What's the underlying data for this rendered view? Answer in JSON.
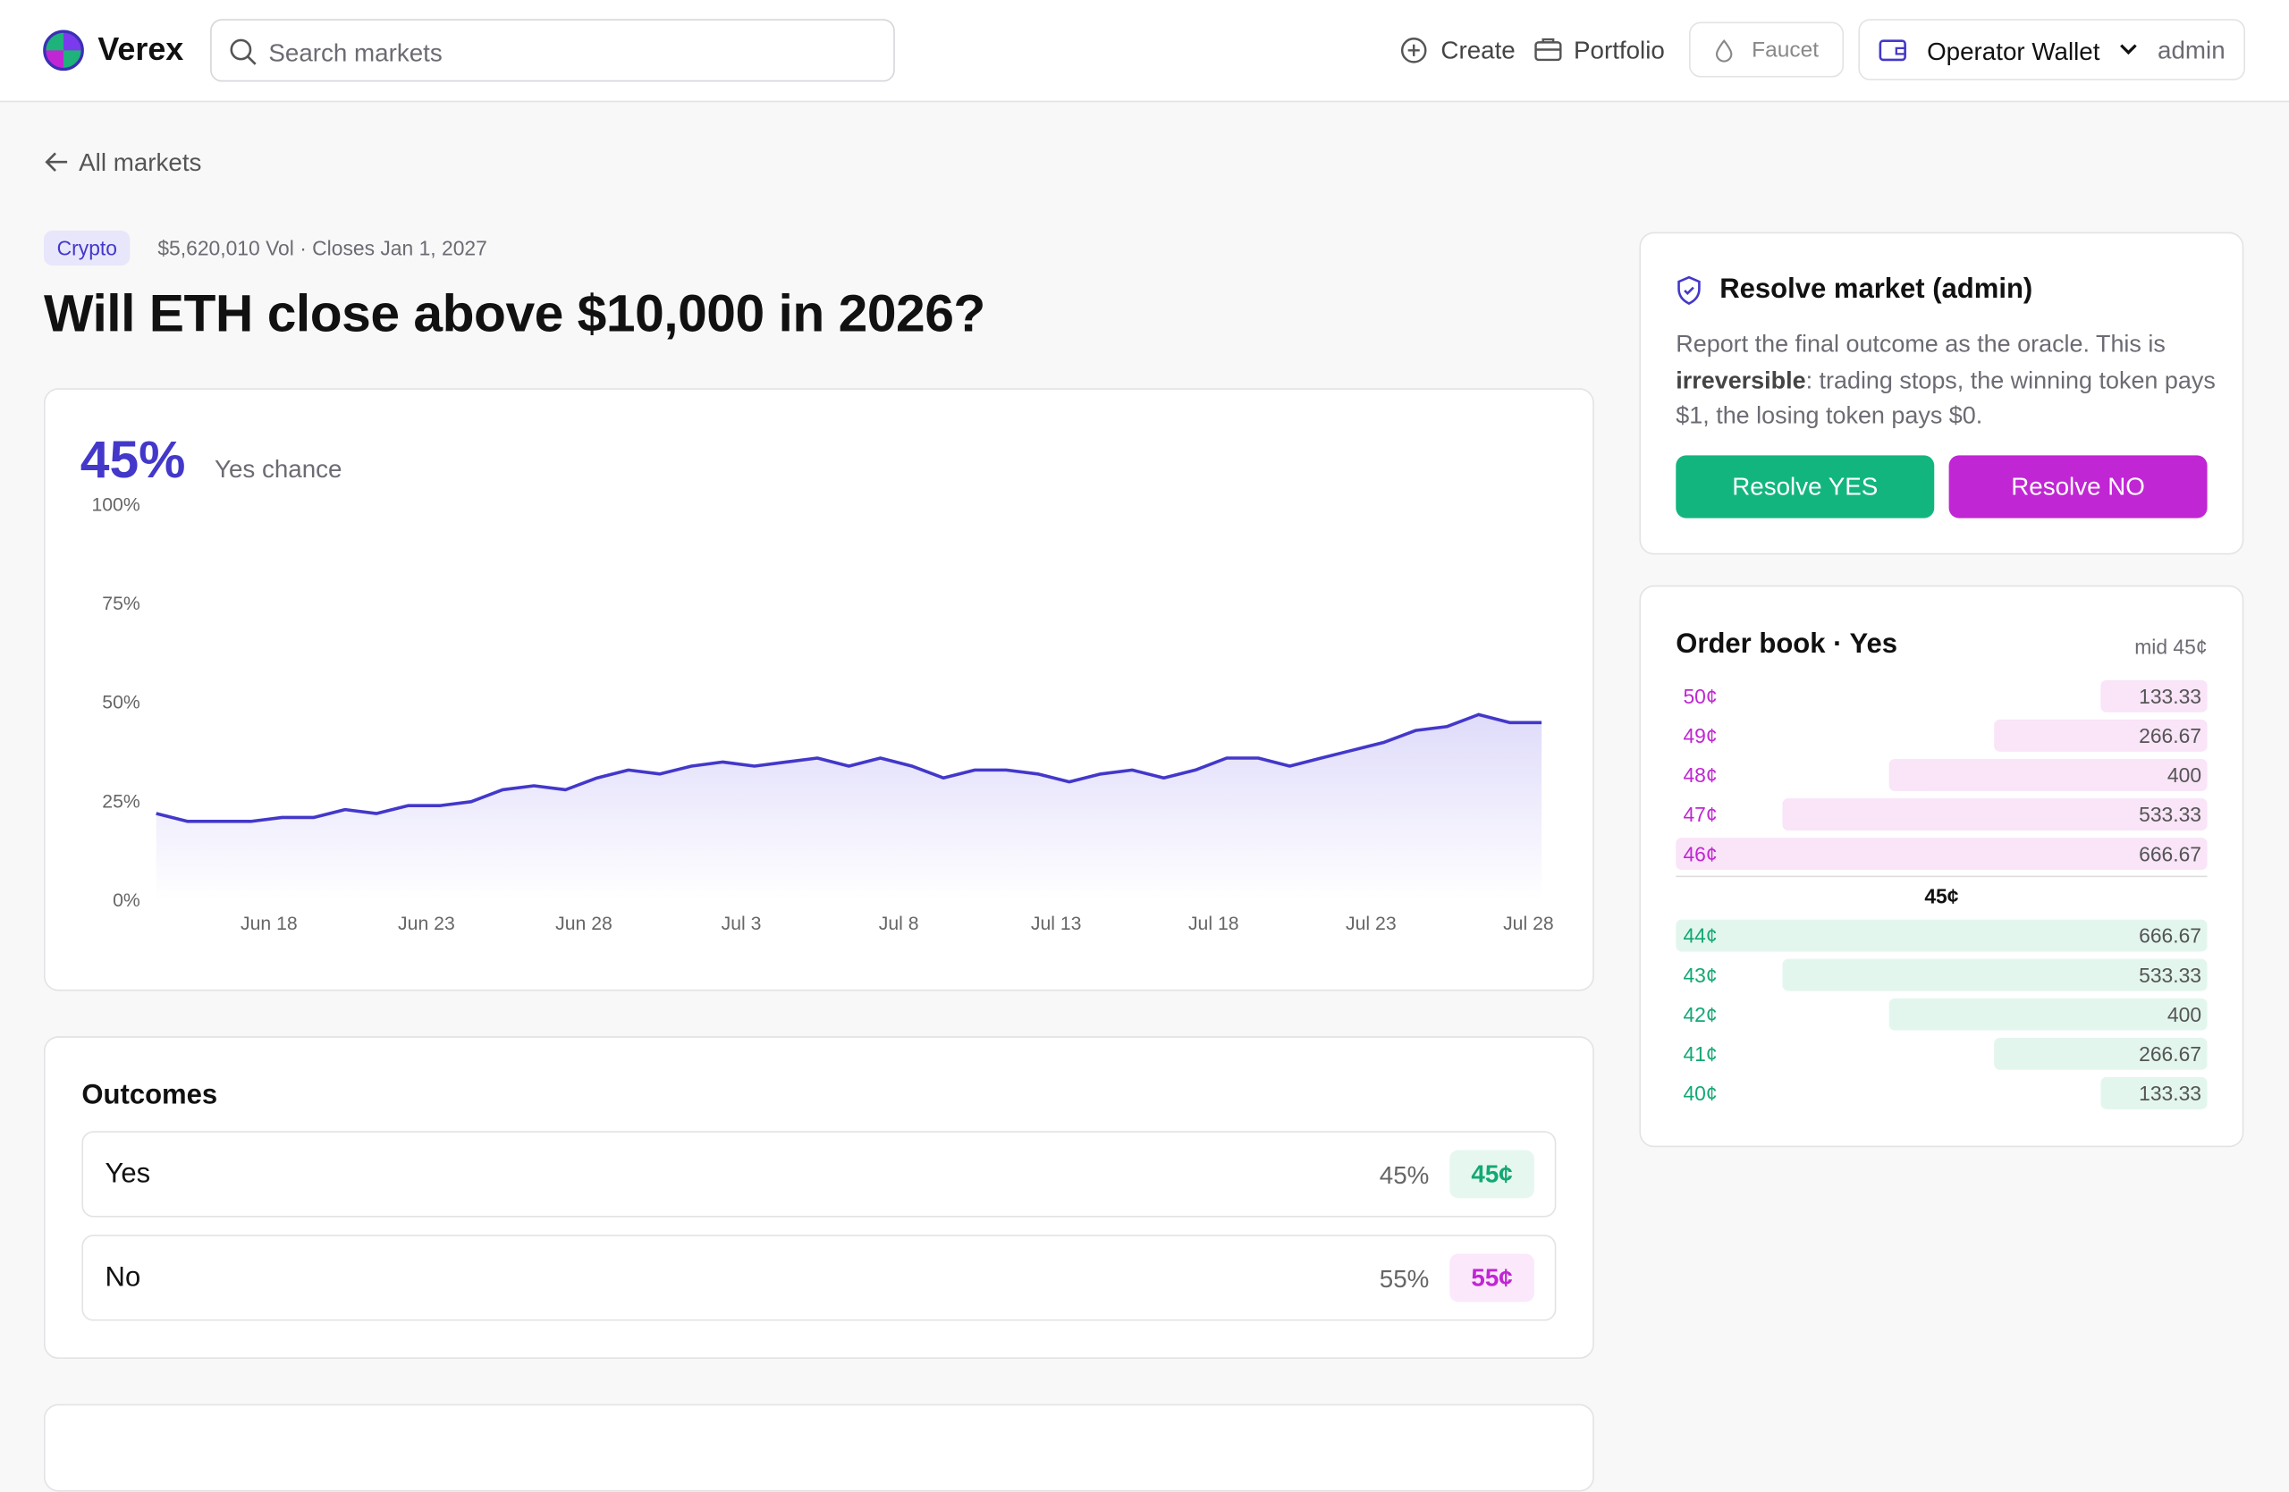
{
  "header": {
    "brand": "Verex",
    "search_placeholder": "Search markets",
    "nav": [
      "Create",
      "Portfolio",
      "Faucet"
    ],
    "wallet": "Operator Wallet",
    "user": "admin"
  },
  "back": "All markets",
  "market": {
    "category": "Crypto",
    "meta": "$5,620,010 Vol · Closes Jan 1, 2027",
    "title": "Will ETH close above $10,000 in 2026?",
    "chance": "45%",
    "chance_label": "Yes chance"
  },
  "chart_data": {
    "type": "line",
    "color": "#4338ca",
    "categories": [
      null,
      null,
      null,
      null,
      "Jun 18",
      null,
      null,
      null,
      null,
      "Jun 23",
      null,
      null,
      null,
      null,
      "Jun 28",
      null,
      null,
      null,
      null,
      "Jul 3",
      null,
      null,
      null,
      null,
      "Jul 8",
      null,
      null,
      null,
      null,
      "Jul 13",
      null,
      null,
      null,
      null,
      "Jul 18",
      null,
      null,
      null,
      null,
      "Jul 23",
      null,
      null,
      null,
      null,
      "Jul 28"
    ],
    "values": [
      22,
      20,
      20,
      20,
      21,
      21,
      23,
      22,
      24,
      24,
      25,
      28,
      29,
      28,
      31,
      33,
      32,
      34,
      35,
      34,
      35,
      36,
      34,
      36,
      34,
      31,
      33,
      33,
      32,
      30,
      32,
      33,
      31,
      33,
      36,
      36,
      34,
      36,
      38,
      40,
      43,
      44,
      47,
      45,
      45
    ],
    "ylim": [
      0,
      100
    ],
    "yticks": [
      {
        "value": 0,
        "label": "0%"
      },
      {
        "value": 25,
        "label": "25%"
      },
      {
        "value": 50,
        "label": "50%"
      },
      {
        "value": 75,
        "label": "75%"
      },
      {
        "value": 100,
        "label": "100%"
      }
    ]
  },
  "outcomes": {
    "title": "Outcomes",
    "rows": [
      {
        "name": "Yes",
        "chance": "45%",
        "price": "45¢"
      },
      {
        "name": "No",
        "chance": "55%",
        "price": "55¢"
      }
    ]
  },
  "resolve": {
    "title": "Resolve market (admin)",
    "text_before": "Report the final outcome as the oracle. This is ",
    "text_bold": "irreversible",
    "text_after": ": trading stops, the winning token pays $1, the losing token pays $0.",
    "yes": "Resolve YES",
    "no": "Resolve NO"
  },
  "order_book": {
    "title": "Order book · Yes",
    "mid": "mid 45¢",
    "spread": "45¢",
    "asks": [
      {
        "price": "50¢",
        "size": 133.33
      },
      {
        "price": "49¢",
        "size": 266.67
      },
      {
        "price": "48¢",
        "size": 400
      },
      {
        "price": "47¢",
        "size": 533.33
      },
      {
        "price": "46¢",
        "size": 666.67
      }
    ],
    "bids": [
      {
        "price": "44¢",
        "size": 666.67
      },
      {
        "price": "43¢",
        "size": 533.33
      },
      {
        "price": "42¢",
        "size": 400
      },
      {
        "price": "41¢",
        "size": 266.67
      },
      {
        "price": "40¢",
        "size": 133.33
      }
    ]
  }
}
